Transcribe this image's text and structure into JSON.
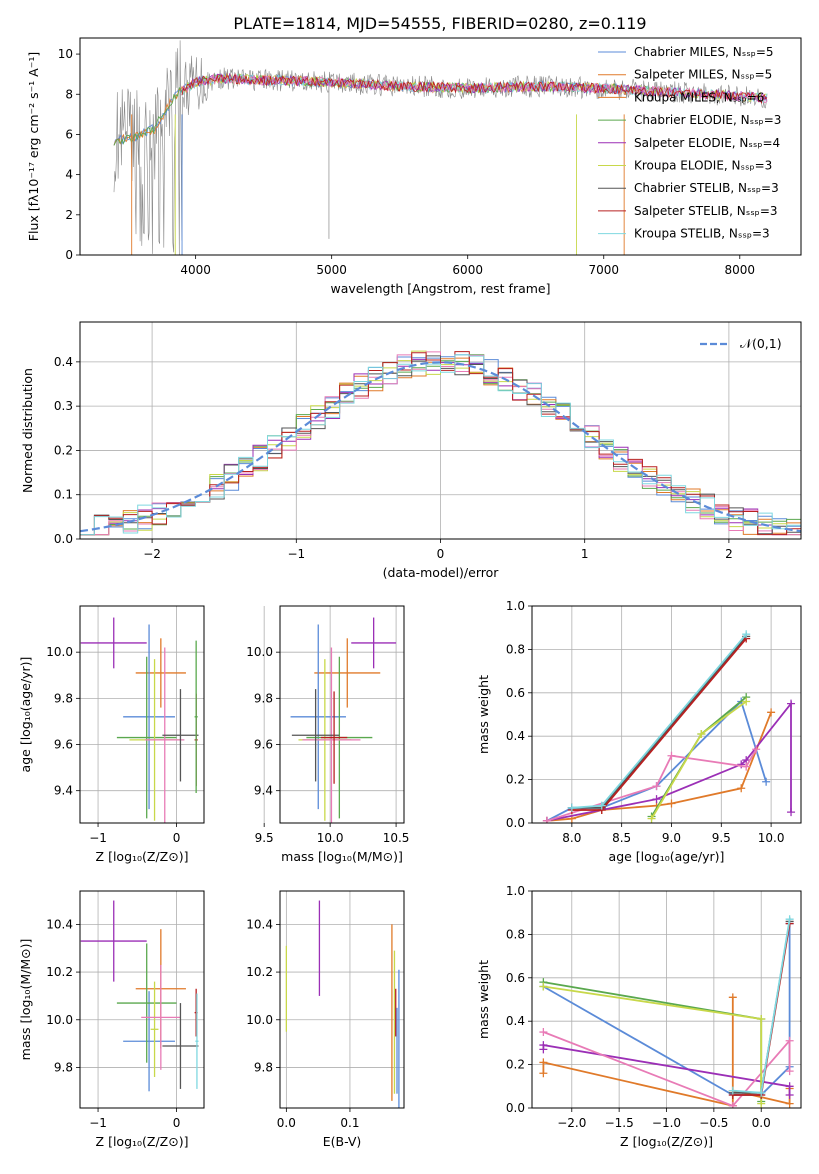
{
  "figure_title": "PLATE=1814, MJD=54555, FIBERID=0280, z=0.119",
  "colors": {
    "c1": "#5b8bd8",
    "c2": "#e07a2a",
    "c3": "#5aa84e",
    "c4": "#9b2fb6",
    "c5": "#c8d84a",
    "c6": "#e87bb6",
    "c7": "#555555",
    "c8": "#b82020",
    "c9": "#7fd8e0",
    "gray": "#888888"
  },
  "chart_data": [
    {
      "id": "spectrum",
      "type": "line",
      "title": "PLATE=1814, MJD=54555, FIBERID=0280, z=0.119",
      "xlabel": "wavelength [Angstrom, rest frame]",
      "ylabel": "Flux [fλ10⁻¹⁷ erg cm⁻² s⁻¹ A⁻¹]",
      "xlim": [
        3150,
        8450
      ],
      "ylim": [
        0,
        10.8
      ],
      "xticks": [
        4000,
        5000,
        6000,
        7000,
        8000
      ],
      "yticks": [
        0,
        2,
        4,
        6,
        8,
        10
      ],
      "legend_position": "top-right",
      "legend": [
        {
          "label": "Chabrier MILES, Nₛₛₚ=5",
          "color": "#5b8bd8"
        },
        {
          "label": "Salpeter MILES, Nₛₛₚ=5",
          "color": "#e07a2a"
        },
        {
          "label": "Kroupa MILES, Nₛₛₚ=6",
          "color": "#e07a2a"
        },
        {
          "label": "Chabrier ELODIE, Nₛₛₚ=3",
          "color": "#5aa84e"
        },
        {
          "label": "Salpeter ELODIE, Nₛₛₚ=4",
          "color": "#9b2fb6"
        },
        {
          "label": "Kroupa ELODIE, Nₛₛₚ=3",
          "color": "#c8d84a"
        },
        {
          "label": "Chabrier STELIB, Nₛₛₚ=3",
          "color": "#555555"
        },
        {
          "label": "Salpeter STELIB, Nₛₛₚ=3",
          "color": "#b82020"
        },
        {
          "label": "Kroupa STELIB, Nₛₛₚ=3",
          "color": "#7fd8e0"
        }
      ],
      "continuum": {
        "x": [
          3400,
          3550,
          3700,
          3850,
          4000,
          4200,
          4500,
          5000,
          5500,
          6000,
          6500,
          7000,
          7500,
          8000,
          8200
        ],
        "y": [
          5.7,
          5.8,
          6.3,
          8.0,
          8.6,
          8.8,
          8.7,
          8.6,
          8.4,
          8.3,
          8.4,
          8.3,
          8.1,
          7.9,
          7.8
        ]
      }
    },
    {
      "id": "residuals",
      "type": "line",
      "xlabel": "(data-model)/error",
      "ylabel": "Normed distribution",
      "xlim": [
        -2.5,
        2.5
      ],
      "ylim": [
        0,
        0.49
      ],
      "xticks": [
        -2,
        -1,
        0,
        1,
        2
      ],
      "yticks": [
        0.0,
        0.1,
        0.2,
        0.3,
        0.4
      ],
      "legend_position": "top-right",
      "legend": [
        {
          "label": "𝒩(0,1)",
          "color": "#5b8bd8",
          "style": "dashed"
        }
      ],
      "bin_width": 0.1
    },
    {
      "id": "age_vs_Z",
      "type": "scatter",
      "xlabel": "Z [log₁₀(Z/Z⊙)]",
      "ylabel": "age  [log₁₀(age/yr)]",
      "xlim": [
        -1.23,
        0.35
      ],
      "ylim": [
        9.26,
        10.2
      ],
      "xticks": [
        -1,
        0
      ],
      "yticks": [
        9.4,
        9.6,
        9.8,
        10.0
      ],
      "points": [
        {
          "x": -0.8,
          "y": 10.04,
          "xerr": 0.42,
          "yerr": 0.11,
          "color": "#9b2fb6"
        },
        {
          "x": -0.2,
          "y": 9.91,
          "xerr": 0.32,
          "yerr": 0.15,
          "color": "#e07a2a"
        },
        {
          "x": -0.35,
          "y": 9.72,
          "xerr": 0.33,
          "yerr": 0.4,
          "color": "#5b8bd8"
        },
        {
          "x": -0.38,
          "y": 9.63,
          "xerr": 0.38,
          "yerr": 0.35,
          "color": "#5aa84e"
        },
        {
          "x": -0.28,
          "y": 9.62,
          "xerr": 0.32,
          "yerr": 0.35,
          "color": "#c8d84a"
        },
        {
          "x": -0.15,
          "y": 9.62,
          "xerr": 0.25,
          "yerr": 0.4,
          "color": "#e87bb6"
        },
        {
          "x": 0.05,
          "y": 9.64,
          "xerr": 0.23,
          "yerr": 0.2,
          "color": "#555555"
        },
        {
          "x": 0.25,
          "y": 9.62,
          "xerr": 0.02,
          "yerr": 0.2,
          "color": "#b82020"
        },
        {
          "x": 0.25,
          "y": 9.72,
          "xerr": 0.02,
          "yerr": 0.33,
          "color": "#5aa84e"
        }
      ]
    },
    {
      "id": "age_vs_mass",
      "type": "scatter",
      "xlabel": "mass [log₁₀(M/M⊙)]",
      "ylabel": "",
      "xlim": [
        9.62,
        10.56
      ],
      "ylim": [
        9.26,
        10.2
      ],
      "xticks": [
        9.5,
        10.0,
        10.5
      ],
      "yticks": [
        9.4,
        9.6,
        9.8,
        10.0
      ],
      "points": [
        {
          "x": 10.33,
          "y": 10.04,
          "xerr": 0.17,
          "yerr": 0.11,
          "color": "#9b2fb6"
        },
        {
          "x": 10.13,
          "y": 9.91,
          "xerr": 0.25,
          "yerr": 0.15,
          "color": "#e07a2a"
        },
        {
          "x": 9.91,
          "y": 9.72,
          "xerr": 0.21,
          "yerr": 0.4,
          "color": "#5b8bd8"
        },
        {
          "x": 10.07,
          "y": 9.63,
          "xerr": 0.25,
          "yerr": 0.35,
          "color": "#5aa84e"
        },
        {
          "x": 9.96,
          "y": 9.62,
          "xerr": 0.2,
          "yerr": 0.35,
          "color": "#c8d84a"
        },
        {
          "x": 10.01,
          "y": 9.62,
          "xerr": 0.22,
          "yerr": 0.4,
          "color": "#e87bb6"
        },
        {
          "x": 9.89,
          "y": 9.64,
          "xerr": 0.18,
          "yerr": 0.2,
          "color": "#555555"
        },
        {
          "x": 10.03,
          "y": 9.63,
          "xerr": 0.1,
          "yerr": 0.2,
          "color": "#b82020"
        }
      ]
    },
    {
      "id": "massweight_vs_age",
      "type": "line",
      "xlabel": "age  [log₁₀(age/yr)]",
      "ylabel": "mass weight",
      "xlim": [
        7.6,
        10.3
      ],
      "ylim": [
        0,
        1.0
      ],
      "xticks": [
        8.0,
        8.5,
        9.0,
        9.5,
        10.0
      ],
      "yticks": [
        0.0,
        0.2,
        0.4,
        0.6,
        0.8,
        1.0
      ],
      "series": [
        {
          "color": "#5b8bd8",
          "x": [
            7.75,
            8.0,
            8.3,
            8.85,
            9.7,
            9.95
          ],
          "y": [
            0.01,
            0.07,
            0.07,
            0.17,
            0.56,
            0.19
          ]
        },
        {
          "color": "#e07a2a",
          "x": [
            7.75,
            8.0,
            8.3,
            8.85,
            9.0,
            9.7,
            10.0
          ],
          "y": [
            0.01,
            0.02,
            0.06,
            0.08,
            0.09,
            0.16,
            0.51
          ]
        },
        {
          "color": "#9b2fb6",
          "x": [
            7.75,
            8.85,
            9.7,
            9.75,
            10.2,
            10.2
          ],
          "y": [
            0.01,
            0.11,
            0.27,
            0.29,
            0.55,
            0.05
          ]
        },
        {
          "color": "#e87bb6",
          "x": [
            7.75,
            8.85,
            9.0,
            9.75,
            9.85
          ],
          "y": [
            0.01,
            0.17,
            0.31,
            0.26,
            0.34
          ]
        },
        {
          "color": "#5aa84e",
          "x": [
            8.8,
            9.3,
            9.75
          ],
          "y": [
            0.03,
            0.41,
            0.58
          ]
        },
        {
          "color": "#c8d84a",
          "x": [
            8.8,
            9.3,
            9.75
          ],
          "y": [
            0.02,
            0.41,
            0.56
          ]
        },
        {
          "color": "#555555",
          "x": [
            8.0,
            8.3,
            9.75
          ],
          "y": [
            0.07,
            0.07,
            0.86
          ]
        },
        {
          "color": "#b82020",
          "x": [
            8.0,
            8.3,
            9.75
          ],
          "y": [
            0.06,
            0.06,
            0.85
          ]
        },
        {
          "color": "#7fd8e0",
          "x": [
            8.0,
            8.3,
            9.75
          ],
          "y": [
            0.07,
            0.08,
            0.87
          ]
        }
      ]
    },
    {
      "id": "mass_vs_Z",
      "type": "scatter",
      "xlabel": "Z [log₁₀(Z/Z⊙)]",
      "ylabel": "mass [log₁₀(M/M⊙)]",
      "xlim": [
        -1.23,
        0.35
      ],
      "ylim": [
        9.63,
        10.54
      ],
      "xticks": [
        -1,
        0
      ],
      "yticks": [
        9.8,
        10.0,
        10.2,
        10.4
      ],
      "points": [
        {
          "x": -0.8,
          "y": 10.33,
          "xerr": 0.42,
          "yerr": 0.17,
          "color": "#9b2fb6"
        },
        {
          "x": -0.2,
          "y": 10.13,
          "xerr": 0.32,
          "yerr": 0.25,
          "color": "#e07a2a"
        },
        {
          "x": -0.35,
          "y": 9.91,
          "xerr": 0.33,
          "yerr": 0.21,
          "color": "#5b8bd8"
        },
        {
          "x": -0.38,
          "y": 10.07,
          "xerr": 0.38,
          "yerr": 0.25,
          "color": "#5aa84e"
        },
        {
          "x": -0.28,
          "y": 9.96,
          "xerr": 0.05,
          "yerr": 0.2,
          "color": "#c8d84a"
        },
        {
          "x": -0.2,
          "y": 10.01,
          "xerr": 0.25,
          "yerr": 0.22,
          "color": "#e87bb6"
        },
        {
          "x": 0.05,
          "y": 9.89,
          "xerr": 0.23,
          "yerr": 0.18,
          "color": "#555555"
        },
        {
          "x": 0.25,
          "y": 10.03,
          "xerr": 0.02,
          "yerr": 0.1,
          "color": "#b82020"
        },
        {
          "x": 0.26,
          "y": 9.91,
          "xerr": 0.02,
          "yerr": 0.2,
          "color": "#7fd8e0"
        }
      ]
    },
    {
      "id": "mass_vs_ebv",
      "type": "scatter",
      "xlabel": "E(B-V)",
      "ylabel": "",
      "xlim": [
        -0.01,
        0.185
      ],
      "ylim": [
        9.63,
        10.54
      ],
      "xticks": [
        0.0,
        0.1
      ],
      "yticks": [
        9.8,
        10.0,
        10.2,
        10.4
      ],
      "points": [
        {
          "x": 0.052,
          "y": 10.3,
          "yerr": 0.2,
          "color": "#9b2fb6"
        },
        {
          "x": 0.0,
          "y": 10.13,
          "yerr": 0.18,
          "color": "#c8d84a"
        },
        {
          "x": 0.166,
          "y": 10.03,
          "yerr": 0.37,
          "color": "#e07a2a"
        },
        {
          "x": 0.17,
          "y": 9.99,
          "yerr": 0.3,
          "color": "#c8d84a"
        },
        {
          "x": 0.172,
          "y": 10.03,
          "yerr": 0.1,
          "color": "#b82020"
        },
        {
          "x": 0.174,
          "y": 9.87,
          "yerr": 0.18,
          "color": "#5b8bd8"
        },
        {
          "x": 0.177,
          "y": 9.91,
          "yerr": 0.3,
          "color": "#5b8bd8"
        }
      ]
    },
    {
      "id": "massweight_vs_Z",
      "type": "line",
      "xlabel": "Z [log₁₀(Z/Z⊙)]",
      "ylabel": "mass weight",
      "xlim": [
        -2.42,
        0.42
      ],
      "ylim": [
        0,
        1.0
      ],
      "xticks": [
        -2.0,
        -1.5,
        -1.0,
        -0.5,
        0.0
      ],
      "yticks": [
        0.0,
        0.2,
        0.4,
        0.6,
        0.8,
        1.0
      ],
      "series": [
        {
          "color": "#5b8bd8",
          "x": [
            -2.3,
            -0.3,
            0.0,
            0.3,
            0.3
          ],
          "y": [
            0.56,
            0.06,
            0.06,
            0.19,
            0.85
          ]
        },
        {
          "color": "#e07a2a",
          "x": [
            -2.3,
            -2.3,
            -0.3,
            -0.3,
            -0.3,
            0.3,
            0.3
          ],
          "y": [
            0.16,
            0.21,
            0.01,
            0.51,
            0.08,
            0.02,
            0.09
          ]
        },
        {
          "color": "#9b2fb6",
          "x": [
            -2.3,
            -2.3,
            0.3,
            0.3
          ],
          "y": [
            0.27,
            0.29,
            0.1,
            0.06
          ]
        },
        {
          "color": "#e87bb6",
          "x": [
            -2.3,
            -0.3,
            0.3,
            0.3
          ],
          "y": [
            0.35,
            0.01,
            0.31,
            0.17
          ]
        },
        {
          "color": "#5aa84e",
          "x": [
            -2.3,
            0.0,
            0.0
          ],
          "y": [
            0.58,
            0.41,
            0.03
          ]
        },
        {
          "color": "#c8d84a",
          "x": [
            -2.3,
            0.0,
            0.0
          ],
          "y": [
            0.56,
            0.41,
            0.02
          ]
        },
        {
          "color": "#555555",
          "x": [
            -0.3,
            0.0,
            0.3
          ],
          "y": [
            0.07,
            0.07,
            0.86
          ]
        },
        {
          "color": "#b82020",
          "x": [
            -0.3,
            0.0,
            0.3
          ],
          "y": [
            0.06,
            0.06,
            0.85
          ]
        },
        {
          "color": "#7fd8e0",
          "x": [
            -0.3,
            0.0,
            0.3
          ],
          "y": [
            0.08,
            0.07,
            0.87
          ]
        }
      ]
    }
  ]
}
